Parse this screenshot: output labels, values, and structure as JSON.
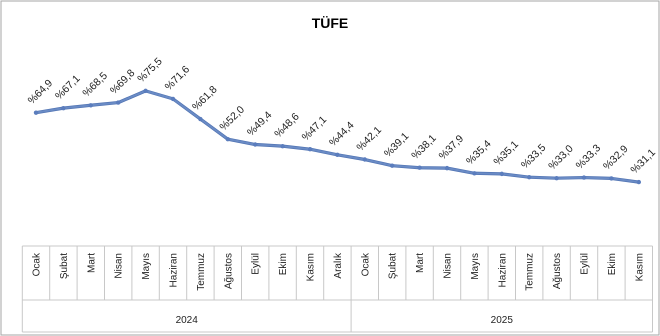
{
  "chart_data": {
    "type": "line",
    "title": "TÜFE",
    "xlabel": "",
    "ylabel": "",
    "value_prefix": "%",
    "years": [
      {
        "label": "2024",
        "months": [
          "Ocak",
          "Şubat",
          "Mart",
          "Nisan",
          "Mayıs",
          "Haziran",
          "Temmuz",
          "Ağustos",
          "Eylül",
          "Ekim",
          "Kasım",
          "Aralık"
        ]
      },
      {
        "label": "2025",
        "months": [
          "Ocak",
          "Şubat",
          "Mart",
          "Nisan",
          "Mayıs",
          "Haziran",
          "Temmuz",
          "Ağustos",
          "Eylül",
          "Ekim",
          "Kasım"
        ]
      }
    ],
    "series": [
      {
        "values": [
          64.9,
          67.1,
          68.5,
          69.8,
          75.5,
          71.6,
          61.8,
          52.0,
          49.4,
          48.6,
          47.1,
          44.4,
          42.1,
          39.1,
          38.1,
          37.9,
          35.4,
          35.1,
          33.5,
          33.0,
          33.3,
          32.9,
          31.1
        ],
        "data_labels": [
          "%64,9",
          "%67,1",
          "%68,5",
          "%69,8",
          "%75,5",
          "%71,6",
          "%61,8",
          "%52,0",
          "%49,4",
          "%48,6",
          "%47,1",
          "%44,4",
          "%42,1",
          "%39,1",
          "%38,1",
          "%37,9",
          "%35,4",
          "%35,1",
          "%33,5",
          "%33,0",
          "%33,3",
          "%32,9",
          "%31,1"
        ]
      }
    ],
    "ylim": [
      0,
      110
    ],
    "grid": false,
    "legend": "none",
    "colors": {
      "line": "#6a8bc5",
      "line_edge": "#4d70b0",
      "marker": "#5b7dbd",
      "separator": "#c8c8c8",
      "border": "#a6a6a6"
    }
  }
}
